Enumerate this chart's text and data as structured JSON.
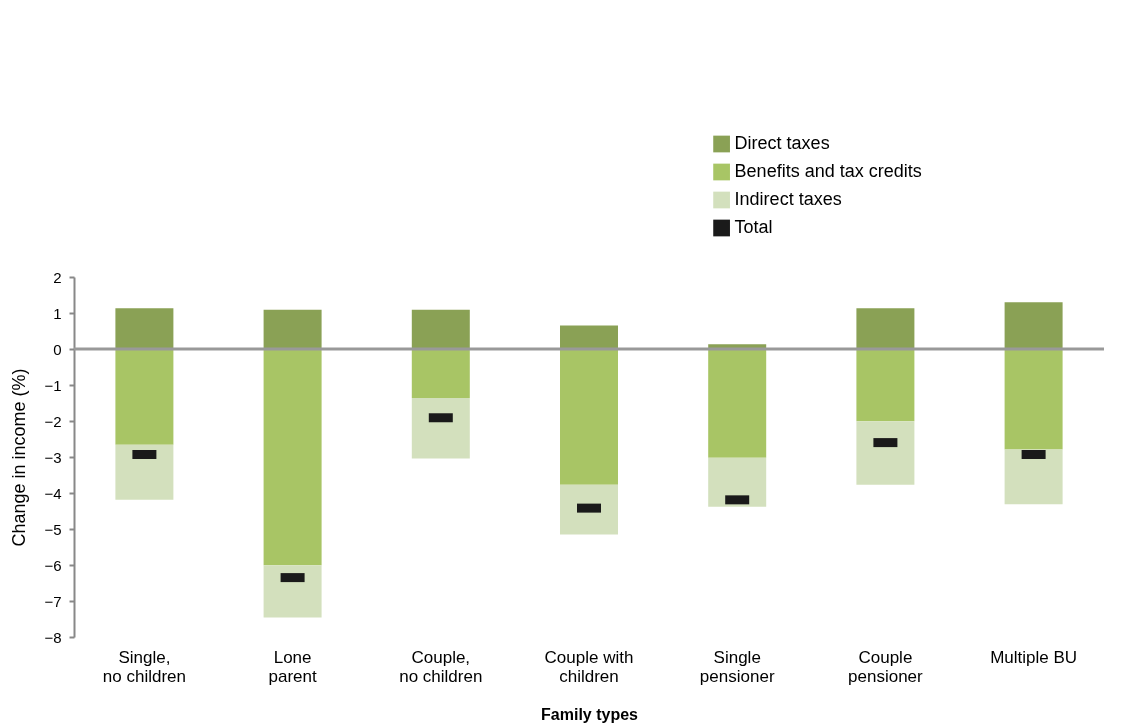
{
  "chart_data": {
    "type": "bar",
    "stacked": true,
    "xlabel": "Family types",
    "ylabel": "Change in income (%)",
    "categories": [
      "Single,\nno children",
      "Lone\nparent",
      "Couple,\nno children",
      "Couple with\nchildren",
      "Single\npensioner",
      "Couple\npensioner",
      "Multiple BU"
    ],
    "series": [
      {
        "name": "Direct taxes",
        "color": "#8aa155",
        "values": [
          1.13,
          1.09,
          1.09,
          0.65,
          0.13,
          1.13,
          1.3
        ]
      },
      {
        "name": "Benefits and tax credits",
        "color": "#a8c565",
        "values": [
          -2.66,
          -6.01,
          -1.36,
          -3.77,
          -3.02,
          -2.01,
          -2.79
        ]
      },
      {
        "name": "Indirect taxes",
        "color": "#d3e0bd",
        "values": [
          -1.53,
          -1.45,
          -1.68,
          -1.38,
          -1.36,
          -1.76,
          -1.52
        ]
      },
      {
        "name": "Total",
        "type": "scatter",
        "color": "#1a1a1a",
        "values": [
          -2.93,
          -6.35,
          -1.91,
          -4.42,
          -4.19,
          -2.6,
          -2.93
        ]
      }
    ],
    "ylim": [
      -8,
      2
    ],
    "yticks": [
      -8,
      -7,
      -6,
      -5,
      -4,
      -3,
      -2,
      -1,
      0,
      1,
      2
    ],
    "ref_lines": [
      {
        "axis": "y",
        "value": 0,
        "color": "#999999"
      }
    ],
    "grid": false,
    "legend": "top right"
  }
}
